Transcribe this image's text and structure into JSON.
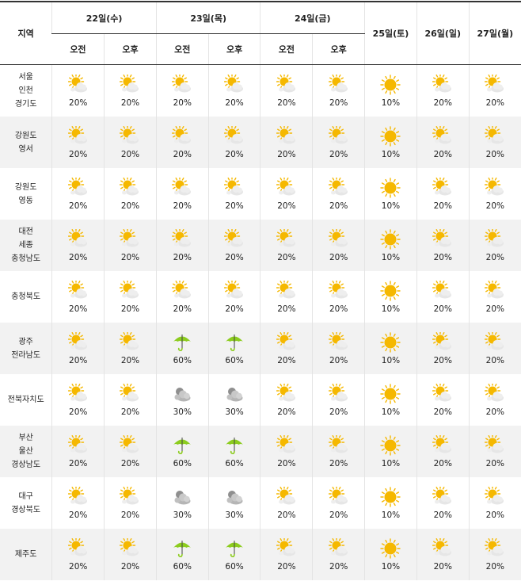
{
  "header": {
    "region": "지역",
    "dates": [
      "22일(수)",
      "23일(목)",
      "24일(금)"
    ],
    "single_dates": [
      "25일(토)",
      "26일(일)",
      "27일(월)"
    ],
    "am": "오전",
    "pm": "오후"
  },
  "rows": [
    {
      "region": [
        "서울",
        "인천",
        "경기도"
      ],
      "cells": [
        [
          "partly-cloudy",
          "20%"
        ],
        [
          "partly-cloudy",
          "20%"
        ],
        [
          "partly-cloudy",
          "20%"
        ],
        [
          "partly-cloudy",
          "20%"
        ],
        [
          "partly-cloudy",
          "20%"
        ],
        [
          "partly-cloudy",
          "20%"
        ],
        [
          "sunny",
          "10%"
        ],
        [
          "partly-cloudy",
          "20%"
        ],
        [
          "partly-cloudy",
          "20%"
        ]
      ]
    },
    {
      "region": [
        "강원도",
        "영서"
      ],
      "cells": [
        [
          "partly-cloudy",
          "20%"
        ],
        [
          "partly-cloudy",
          "20%"
        ],
        [
          "partly-cloudy",
          "20%"
        ],
        [
          "partly-cloudy",
          "20%"
        ],
        [
          "partly-cloudy",
          "20%"
        ],
        [
          "partly-cloudy",
          "20%"
        ],
        [
          "sunny",
          "10%"
        ],
        [
          "partly-cloudy",
          "20%"
        ],
        [
          "partly-cloudy",
          "20%"
        ]
      ]
    },
    {
      "region": [
        "강원도",
        "영동"
      ],
      "cells": [
        [
          "partly-cloudy",
          "20%"
        ],
        [
          "partly-cloudy",
          "20%"
        ],
        [
          "partly-cloudy",
          "20%"
        ],
        [
          "partly-cloudy",
          "20%"
        ],
        [
          "partly-cloudy",
          "20%"
        ],
        [
          "partly-cloudy",
          "20%"
        ],
        [
          "sunny",
          "10%"
        ],
        [
          "partly-cloudy",
          "20%"
        ],
        [
          "partly-cloudy",
          "20%"
        ]
      ]
    },
    {
      "region": [
        "대전",
        "세종",
        "충청남도"
      ],
      "cells": [
        [
          "partly-cloudy",
          "20%"
        ],
        [
          "partly-cloudy",
          "20%"
        ],
        [
          "partly-cloudy",
          "20%"
        ],
        [
          "partly-cloudy",
          "20%"
        ],
        [
          "partly-cloudy",
          "20%"
        ],
        [
          "partly-cloudy",
          "20%"
        ],
        [
          "sunny",
          "10%"
        ],
        [
          "partly-cloudy",
          "20%"
        ],
        [
          "partly-cloudy",
          "20%"
        ]
      ]
    },
    {
      "region": [
        "충청북도"
      ],
      "cells": [
        [
          "partly-cloudy",
          "20%"
        ],
        [
          "partly-cloudy",
          "20%"
        ],
        [
          "partly-cloudy",
          "20%"
        ],
        [
          "partly-cloudy",
          "20%"
        ],
        [
          "partly-cloudy",
          "20%"
        ],
        [
          "partly-cloudy",
          "20%"
        ],
        [
          "sunny",
          "10%"
        ],
        [
          "partly-cloudy",
          "20%"
        ],
        [
          "partly-cloudy",
          "20%"
        ]
      ]
    },
    {
      "region": [
        "광주",
        "전라남도"
      ],
      "cells": [
        [
          "partly-cloudy",
          "20%"
        ],
        [
          "partly-cloudy",
          "20%"
        ],
        [
          "rain-umbrella",
          "60%"
        ],
        [
          "rain-umbrella",
          "60%"
        ],
        [
          "partly-cloudy",
          "20%"
        ],
        [
          "partly-cloudy",
          "20%"
        ],
        [
          "sunny",
          "10%"
        ],
        [
          "partly-cloudy",
          "20%"
        ],
        [
          "partly-cloudy",
          "20%"
        ]
      ]
    },
    {
      "region": [
        "전북자치도"
      ],
      "cells": [
        [
          "partly-cloudy",
          "20%"
        ],
        [
          "partly-cloudy",
          "20%"
        ],
        [
          "cloudy",
          "30%"
        ],
        [
          "cloudy",
          "30%"
        ],
        [
          "partly-cloudy",
          "20%"
        ],
        [
          "partly-cloudy",
          "20%"
        ],
        [
          "sunny",
          "10%"
        ],
        [
          "partly-cloudy",
          "20%"
        ],
        [
          "partly-cloudy",
          "20%"
        ]
      ]
    },
    {
      "region": [
        "부산",
        "울산",
        "경상남도"
      ],
      "cells": [
        [
          "partly-cloudy",
          "20%"
        ],
        [
          "partly-cloudy",
          "20%"
        ],
        [
          "rain-umbrella",
          "60%"
        ],
        [
          "rain-umbrella",
          "60%"
        ],
        [
          "partly-cloudy",
          "20%"
        ],
        [
          "partly-cloudy",
          "20%"
        ],
        [
          "sunny",
          "10%"
        ],
        [
          "partly-cloudy",
          "20%"
        ],
        [
          "partly-cloudy",
          "20%"
        ]
      ]
    },
    {
      "region": [
        "대구",
        "경상북도"
      ],
      "cells": [
        [
          "partly-cloudy",
          "20%"
        ],
        [
          "partly-cloudy",
          "20%"
        ],
        [
          "cloudy",
          "30%"
        ],
        [
          "cloudy",
          "30%"
        ],
        [
          "partly-cloudy",
          "20%"
        ],
        [
          "partly-cloudy",
          "20%"
        ],
        [
          "sunny",
          "10%"
        ],
        [
          "partly-cloudy",
          "20%"
        ],
        [
          "partly-cloudy",
          "20%"
        ]
      ]
    },
    {
      "region": [
        "제주도"
      ],
      "cells": [
        [
          "partly-cloudy",
          "20%"
        ],
        [
          "partly-cloudy",
          "20%"
        ],
        [
          "rain-umbrella",
          "60%"
        ],
        [
          "rain-umbrella",
          "60%"
        ],
        [
          "partly-cloudy",
          "20%"
        ],
        [
          "partly-cloudy",
          "20%"
        ],
        [
          "sunny",
          "10%"
        ],
        [
          "partly-cloudy",
          "20%"
        ],
        [
          "partly-cloudy",
          "20%"
        ]
      ]
    }
  ],
  "colors": {
    "sun": "#f5b800",
    "cloud": "#e6e6e6",
    "umbrella": "#8ccc1e",
    "dark_cloud": "#b5b5b5",
    "alt_row": "#f2f2f2"
  }
}
